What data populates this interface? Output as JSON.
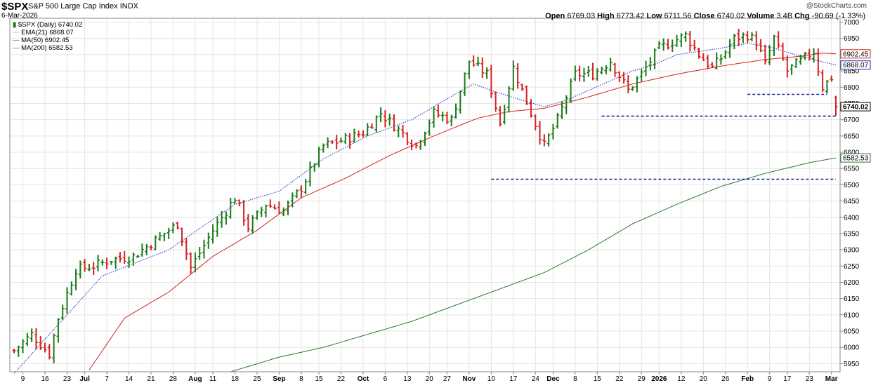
{
  "header": {
    "symbol": "$SPX",
    "name": "S&P 500 Large Cap Index",
    "exchange": "INDX",
    "date": "6-Mar-2026",
    "copyright": "@StockCharts.com",
    "open_label": "Open",
    "open": "6769.03",
    "high_label": "High",
    "high": "6773.42",
    "low_label": "Low",
    "low": "6711.56",
    "close_label": "Close",
    "close": "6740.02",
    "volume_label": "Volume",
    "volume": "3.4B",
    "chg_label": "Chg",
    "chg": "-90.69 (-1.33%)"
  },
  "legend": [
    {
      "text": "$SPX (Daily) 6740.02",
      "color": "#1a7a1a"
    },
    {
      "text": "EMA(21) 6868.07",
      "color": "#1c2ab8"
    },
    {
      "text": "MA(50) 6902.45",
      "color": "#d62020"
    },
    {
      "text": "MA(200) 6582.53",
      "color": "#1a7a1a"
    }
  ],
  "colors": {
    "up": "#1a7a1a",
    "down": "#d62020",
    "ema21": "#1c2ab8",
    "ma50": "#d62020",
    "ma200": "#2a7a2a",
    "support": "#0a1ea8",
    "grid": "#e4e4e4"
  },
  "chart_data": {
    "type": "ohlc-bar",
    "ylim": [
      5925,
      7012
    ],
    "y_ticks": [
      5950,
      6000,
      6050,
      6100,
      6150,
      6200,
      6250,
      6300,
      6350,
      6400,
      6450,
      6500,
      6550,
      6600,
      6650,
      6700,
      6750,
      6800,
      6850,
      6900,
      6950,
      7000
    ],
    "x_labels": [
      "9",
      "16",
      "23",
      "Jul",
      "7",
      "14",
      "21",
      "28",
      "Aug",
      "11",
      "18",
      "25",
      "Sep",
      "8",
      "15",
      "22",
      "Oct",
      "6",
      "13",
      "20",
      "27",
      "Nov",
      "10",
      "17",
      "24",
      "Dec",
      "8",
      "15",
      "22",
      "29",
      "2026",
      "12",
      "20",
      "26",
      "Feb",
      "9",
      "17",
      "23",
      "Mar"
    ],
    "bold_labels": [
      "Jul",
      "Aug",
      "Sep",
      "Oct",
      "Nov",
      "Dec",
      "2026",
      "Feb",
      "Mar"
    ],
    "session_count": 187,
    "anchors": [
      [
        0,
        5990
      ],
      [
        4,
        6040
      ],
      [
        8,
        5980
      ],
      [
        10,
        6090
      ],
      [
        14,
        6240
      ],
      [
        18,
        6250
      ],
      [
        22,
        6270
      ],
      [
        27,
        6280
      ],
      [
        33,
        6340
      ],
      [
        37,
        6380
      ],
      [
        40,
        6245
      ],
      [
        45,
        6360
      ],
      [
        50,
        6460
      ],
      [
        53,
        6370
      ],
      [
        57,
        6440
      ],
      [
        61,
        6420
      ],
      [
        65,
        6490
      ],
      [
        70,
        6620
      ],
      [
        75,
        6640
      ],
      [
        79,
        6660
      ],
      [
        83,
        6720
      ],
      [
        87,
        6670
      ],
      [
        91,
        6620
      ],
      [
        95,
        6720
      ],
      [
        99,
        6700
      ],
      [
        103,
        6880
      ],
      [
        107,
        6840
      ],
      [
        110,
        6690
      ],
      [
        113,
        6860
      ],
      [
        117,
        6720
      ],
      [
        120,
        6620
      ],
      [
        123,
        6700
      ],
      [
        127,
        6840
      ],
      [
        131,
        6840
      ],
      [
        135,
        6880
      ],
      [
        139,
        6790
      ],
      [
        142,
        6840
      ],
      [
        146,
        6920
      ],
      [
        149,
        6940
      ],
      [
        152,
        6960
      ],
      [
        155,
        6900
      ],
      [
        158,
        6860
      ],
      [
        160,
        6890
      ],
      [
        163,
        6950
      ],
      [
        166,
        6960
      ],
      [
        168,
        6940
      ],
      [
        170,
        6870
      ],
      [
        172,
        6950
      ],
      [
        175,
        6850
      ],
      [
        178,
        6880
      ],
      [
        181,
        6910
      ],
      [
        183,
        6800
      ],
      [
        185,
        6830
      ],
      [
        186,
        6740
      ]
    ],
    "last_bar": {
      "open": 6769.03,
      "high": 6773.42,
      "low": 6711.56,
      "close": 6740.02
    },
    "ema21": [
      [
        0,
        5920
      ],
      [
        20,
        6220
      ],
      [
        35,
        6300
      ],
      [
        50,
        6440
      ],
      [
        60,
        6480
      ],
      [
        70,
        6580
      ],
      [
        80,
        6650
      ],
      [
        90,
        6700
      ],
      [
        100,
        6780
      ],
      [
        104,
        6810
      ],
      [
        108,
        6790
      ],
      [
        115,
        6760
      ],
      [
        120,
        6740
      ],
      [
        125,
        6760
      ],
      [
        130,
        6790
      ],
      [
        135,
        6820
      ],
      [
        140,
        6850
      ],
      [
        145,
        6870
      ],
      [
        150,
        6900
      ],
      [
        155,
        6910
      ],
      [
        160,
        6920
      ],
      [
        166,
        6935
      ],
      [
        172,
        6920
      ],
      [
        178,
        6895
      ],
      [
        186,
        6868.07
      ]
    ],
    "ma50": [
      [
        17,
        5930
      ],
      [
        25,
        6090
      ],
      [
        35,
        6170
      ],
      [
        45,
        6280
      ],
      [
        55,
        6360
      ],
      [
        65,
        6460
      ],
      [
        75,
        6520
      ],
      [
        85,
        6590
      ],
      [
        95,
        6650
      ],
      [
        105,
        6705
      ],
      [
        112,
        6725
      ],
      [
        120,
        6735
      ],
      [
        130,
        6770
      ],
      [
        140,
        6810
      ],
      [
        150,
        6840
      ],
      [
        160,
        6865
      ],
      [
        170,
        6885
      ],
      [
        178,
        6895
      ],
      [
        183,
        6905
      ],
      [
        186,
        6902.45
      ]
    ],
    "ma200": [
      [
        49,
        5925
      ],
      [
        60,
        5970
      ],
      [
        70,
        6000
      ],
      [
        80,
        6040
      ],
      [
        90,
        6080
      ],
      [
        100,
        6130
      ],
      [
        110,
        6180
      ],
      [
        120,
        6230
      ],
      [
        130,
        6300
      ],
      [
        140,
        6380
      ],
      [
        150,
        6440
      ],
      [
        160,
        6495
      ],
      [
        170,
        6535
      ],
      [
        180,
        6568
      ],
      [
        186,
        6582.53
      ]
    ],
    "support_lines": [
      {
        "y": 6517,
        "x_from": 108,
        "x_to": 186
      },
      {
        "y": 6711,
        "x_from": 133,
        "x_to": 186
      },
      {
        "y": 6778,
        "x_from": 166,
        "x_to": 184
      }
    ],
    "right_labels": [
      {
        "value": "6902.45",
        "kind": "ma50"
      },
      {
        "value": "6868.07",
        "kind": "ema21"
      },
      {
        "value": "6740.02",
        "kind": "price"
      },
      {
        "value": "6582.53",
        "kind": "ma200"
      }
    ]
  }
}
